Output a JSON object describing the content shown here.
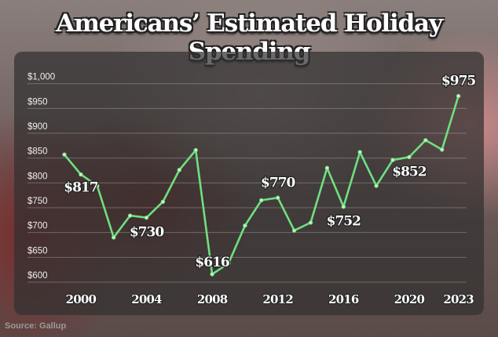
{
  "chart_data": {
    "type": "line",
    "title": "Americans’ Estimated Holiday Spending",
    "source": "Source: Gallup",
    "xlabel": "",
    "ylabel": "",
    "ylim": [
      600,
      1000
    ],
    "yticks": [
      "$600",
      "$650",
      "$700",
      "$750",
      "$800",
      "$850",
      "$900",
      "$950",
      "$1,000"
    ],
    "ytick_values": [
      600,
      650,
      700,
      750,
      800,
      850,
      900,
      950,
      1000
    ],
    "xticks": [
      "2000",
      "2004",
      "2008",
      "2012",
      "2016",
      "2020",
      "2023"
    ],
    "xtick_values": [
      2000,
      2004,
      2008,
      2012,
      2016,
      2020,
      2023
    ],
    "grid": true,
    "line_color": "#6fe07f",
    "x": [
      1999,
      2000,
      2001,
      2002,
      2003,
      2004,
      2005,
      2006,
      2007,
      2008,
      2009,
      2010,
      2011,
      2012,
      2013,
      2014,
      2015,
      2016,
      2017,
      2018,
      2019,
      2020,
      2021,
      2022,
      2023
    ],
    "values": [
      857,
      817,
      794,
      690,
      734,
      730,
      762,
      826,
      866,
      616,
      638,
      714,
      765,
      770,
      704,
      720,
      830,
      752,
      862,
      794,
      846,
      852,
      886,
      867,
      975
    ],
    "data_labels": [
      {
        "year": 2000,
        "text": "$817"
      },
      {
        "year": 2004,
        "text": "$730"
      },
      {
        "year": 2008,
        "text": "$616"
      },
      {
        "year": 2012,
        "text": "$770"
      },
      {
        "year": 2016,
        "text": "$752"
      },
      {
        "year": 2020,
        "text": "$852"
      },
      {
        "year": 2023,
        "text": "$975"
      }
    ]
  }
}
